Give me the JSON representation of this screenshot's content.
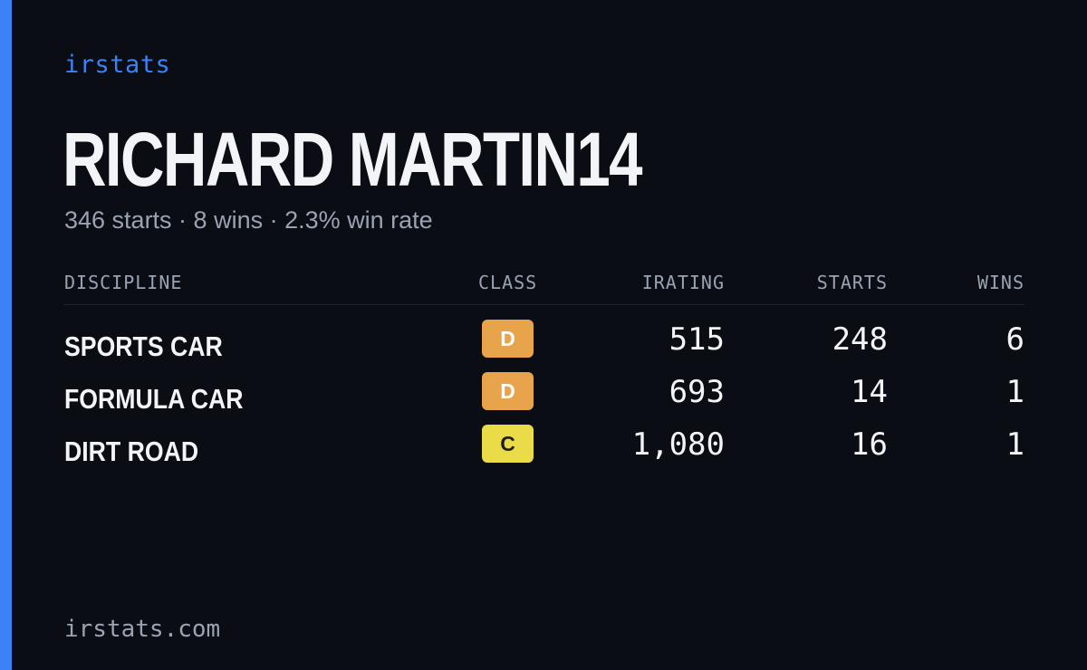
{
  "brand": "irstats",
  "driver": {
    "name": "RICHARD MARTIN14",
    "summary": "346 starts · 8 wins · 2.3% win rate"
  },
  "colors": {
    "accent": "#3b82f6",
    "background": "#0b0d14",
    "class_d": "#e8a44a",
    "class_c": "#eadc48"
  },
  "table": {
    "headers": {
      "discipline": "DISCIPLINE",
      "class": "CLASS",
      "irating": "IRATING",
      "starts": "STARTS",
      "wins": "WINS"
    },
    "rows": [
      {
        "discipline": "SPORTS CAR",
        "class": "D",
        "irating": "515",
        "starts": "248",
        "wins": "6"
      },
      {
        "discipline": "FORMULA CAR",
        "class": "D",
        "irating": "693",
        "starts": "14",
        "wins": "1"
      },
      {
        "discipline": "DIRT ROAD",
        "class": "C",
        "irating": "1,080",
        "starts": "16",
        "wins": "1"
      }
    ]
  },
  "footer": "irstats.com"
}
